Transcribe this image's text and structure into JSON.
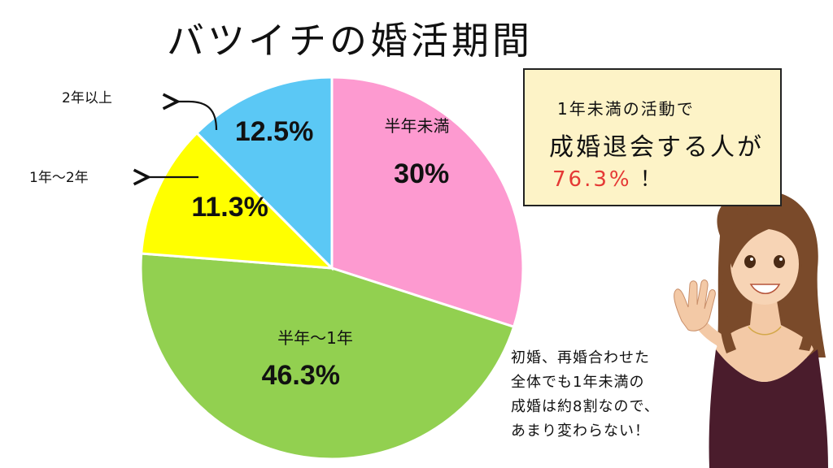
{
  "title": "バツイチの婚活期間",
  "chart_data": {
    "type": "pie",
    "slices": [
      {
        "label": "半年未満",
        "value": 30,
        "value_label": "30%",
        "color": "#fd9ad0"
      },
      {
        "label": "半年～1年",
        "value": 46.3,
        "value_label": "46.3%",
        "color": "#92d050"
      },
      {
        "label": "1年～2年",
        "value": 11.3,
        "value_label": "11.3%",
        "color": "#ffff00"
      },
      {
        "label": "2年以上",
        "value": 12.5,
        "value_label": "12.5%",
        "color": "#5bc8f5"
      }
    ],
    "start": "12 o'clock",
    "direction": "clockwise",
    "external_labels": [
      "2年以上",
      "1年～2年"
    ]
  },
  "callout": {
    "line1": "1年未満の活動で",
    "line2": "成婚退会する人が",
    "highlight": "76.3%",
    "exclaim": "！"
  },
  "note": {
    "lines": [
      "初婚、再婚合わせた",
      "全体でも1年未満の",
      "成婚は約8割なので、",
      "あまり変わらない！"
    ]
  },
  "illustration": {
    "description_icon": "waving-woman-illustration"
  }
}
